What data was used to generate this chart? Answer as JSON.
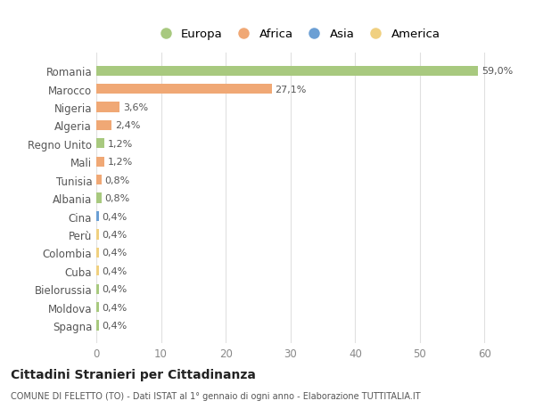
{
  "countries": [
    "Romania",
    "Marocco",
    "Nigeria",
    "Algeria",
    "Regno Unito",
    "Mali",
    "Tunisia",
    "Albania",
    "Cina",
    "Perù",
    "Colombia",
    "Cuba",
    "Bielorussia",
    "Moldova",
    "Spagna"
  ],
  "values": [
    59.0,
    27.1,
    3.6,
    2.4,
    1.2,
    1.2,
    0.8,
    0.8,
    0.4,
    0.4,
    0.4,
    0.4,
    0.4,
    0.4,
    0.4
  ],
  "labels": [
    "59,0%",
    "27,1%",
    "3,6%",
    "2,4%",
    "1,2%",
    "1,2%",
    "0,8%",
    "0,8%",
    "0,4%",
    "0,4%",
    "0,4%",
    "0,4%",
    "0,4%",
    "0,4%",
    "0,4%"
  ],
  "continents": [
    "Europa",
    "Africa",
    "Africa",
    "Africa",
    "Europa",
    "Africa",
    "Africa",
    "Europa",
    "Asia",
    "America",
    "America",
    "America",
    "Europa",
    "Europa",
    "Europa"
  ],
  "colors": {
    "Europa": "#a8c97f",
    "Africa": "#f0a875",
    "Asia": "#6b9fd4",
    "America": "#f0d080"
  },
  "legend_order": [
    "Europa",
    "Africa",
    "Asia",
    "America"
  ],
  "title": "Cittadini Stranieri per Cittadinanza",
  "subtitle": "COMUNE DI FELETTO (TO) - Dati ISTAT al 1° gennaio di ogni anno - Elaborazione TUTTITALIA.IT",
  "xlim": [
    0,
    62
  ],
  "xticks": [
    0,
    10,
    20,
    30,
    40,
    50,
    60
  ],
  "bg_color": "#ffffff",
  "grid_color": "#e0e0e0"
}
